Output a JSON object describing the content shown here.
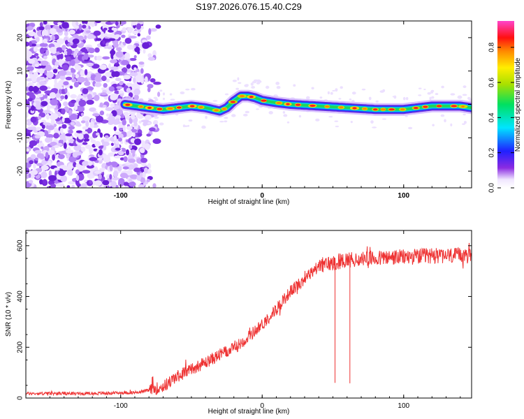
{
  "title": "S197.2026.076.15.40.C29",
  "chart_data": [
    {
      "type": "heatmap",
      "xlabel": "Height of straight line (km)",
      "ylabel": "Frequency (Hz)",
      "xlim": [
        -167,
        148
      ],
      "ylim": [
        -25,
        25
      ],
      "xticks": [
        -100,
        0,
        100
      ],
      "yticks": [
        -20,
        -10,
        0,
        10,
        20
      ],
      "colorbar": {
        "label": "Normalized spectral amplitude",
        "range": [
          0,
          0.95
        ],
        "ticks": [
          0.0,
          0.2,
          0.4,
          0.6,
          0.8
        ]
      },
      "ridge": {
        "x": [
          -97,
          -80,
          -70,
          -60,
          -50,
          -40,
          -30,
          -25,
          -20,
          -15,
          -10,
          -5,
          0,
          10,
          20,
          40,
          60,
          80,
          100,
          120,
          140,
          148
        ],
        "y": [
          0,
          -1,
          -1.5,
          -1,
          -0.5,
          -1,
          -2,
          -1,
          1,
          2.5,
          2.5,
          2,
          1.2,
          0.5,
          0,
          -0.5,
          -1,
          -1.5,
          -1.5,
          -0.5,
          -0.5,
          -1
        ]
      },
      "noise_region_x": [
        -167,
        -80
      ]
    },
    {
      "type": "line",
      "xlabel": "Height of straight line (km)",
      "ylabel": "SNR (10 * v/v)",
      "xlim": [
        -167,
        148
      ],
      "ylim": [
        0,
        660
      ],
      "xticks": [
        -100,
        0,
        100
      ],
      "yticks": [
        0,
        200,
        400,
        600
      ],
      "color": "#ee3333",
      "trend": {
        "x": [
          -167,
          -120,
          -90,
          -80,
          -70,
          -60,
          -50,
          -40,
          -30,
          -20,
          -10,
          0,
          10,
          20,
          30,
          40,
          60,
          80,
          100,
          120,
          148
        ],
        "y": [
          18,
          18,
          22,
          30,
          45,
          85,
          115,
          140,
          170,
          195,
          240,
          290,
          350,
          420,
          470,
          520,
          545,
          550,
          555,
          560,
          560
        ]
      },
      "dips": [
        {
          "x": 51.5,
          "y": 60
        },
        {
          "x": 62,
          "y": 58
        }
      ]
    }
  ]
}
